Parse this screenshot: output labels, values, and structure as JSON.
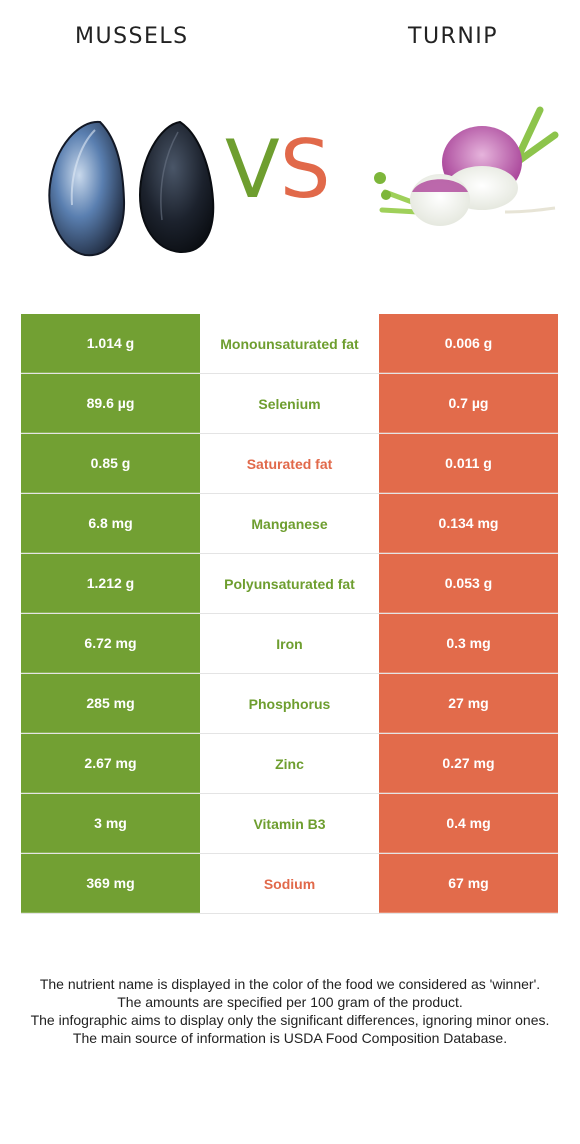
{
  "header": {
    "left_food": "MUSSELS",
    "right_food": "TURNIP",
    "vs_v": "V",
    "vs_s": "S"
  },
  "colors": {
    "left": "#72a033",
    "right": "#e26b4b",
    "winner_left_text": "#6e9e2f",
    "winner_right_text": "#e1694a"
  },
  "rows": [
    {
      "left": "1.014 g",
      "nutrient": "Monounsaturated fat",
      "right": "0.006 g",
      "winner": "left"
    },
    {
      "left": "89.6 µg",
      "nutrient": "Selenium",
      "right": "0.7 µg",
      "winner": "left"
    },
    {
      "left": "0.85 g",
      "nutrient": "Saturated fat",
      "right": "0.011 g",
      "winner": "right"
    },
    {
      "left": "6.8 mg",
      "nutrient": "Manganese",
      "right": "0.134 mg",
      "winner": "left"
    },
    {
      "left": "1.212 g",
      "nutrient": "Polyunsaturated fat",
      "right": "0.053 g",
      "winner": "left"
    },
    {
      "left": "6.72 mg",
      "nutrient": "Iron",
      "right": "0.3 mg",
      "winner": "left"
    },
    {
      "left": "285 mg",
      "nutrient": "Phosphorus",
      "right": "27 mg",
      "winner": "left"
    },
    {
      "left": "2.67 mg",
      "nutrient": "Zinc",
      "right": "0.27 mg",
      "winner": "left"
    },
    {
      "left": "3 mg",
      "nutrient": "Vitamin B3",
      "right": "0.4 mg",
      "winner": "left"
    },
    {
      "left": "369 mg",
      "nutrient": "Sodium",
      "right": "67 mg",
      "winner": "right"
    }
  ],
  "footnote": [
    "The nutrient name is displayed in the color of the food we considered as 'winner'.",
    "The amounts are specified per 100 gram of the product.",
    "The infographic aims to display only the significant differences, ignoring minor ones.",
    "The main source of information is USDA Food Composition Database."
  ]
}
